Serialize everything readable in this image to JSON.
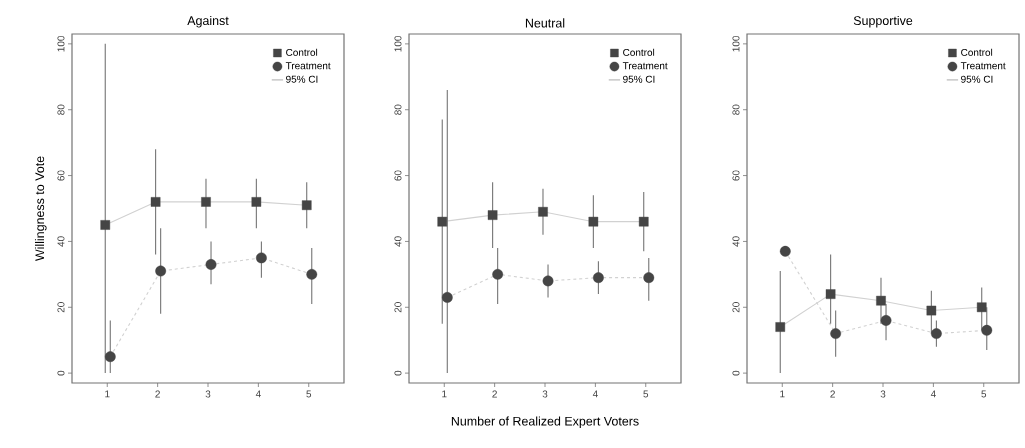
{
  "chart_data": [
    {
      "type": "line",
      "title": "Against",
      "ylabel": "Willingness to Vote",
      "xlim": [
        0.3,
        5.7
      ],
      "ylim": [
        -3,
        103
      ],
      "xticks": [
        1,
        2,
        3,
        4,
        5
      ],
      "yticks": [
        0,
        20,
        40,
        60,
        80,
        100
      ],
      "grid": false,
      "legend": "top right",
      "annotations": [
        "95% CI"
      ],
      "series": [
        {
          "name": "Control",
          "color": "#454545",
          "marker": "square",
          "line_style": "solid",
          "x": [
            0.96,
            1.96,
            2.96,
            3.96,
            4.96
          ],
          "values": [
            45,
            52,
            52,
            52,
            51
          ],
          "errors": [
            [
              0,
              100
            ],
            [
              36,
              68
            ],
            [
              44,
              59
            ],
            [
              44,
              59
            ],
            [
              44,
              58
            ]
          ]
        },
        {
          "name": "Treatment",
          "color": "#454545",
          "marker": "circle",
          "line_style": "dashed",
          "x": [
            1.06,
            2.06,
            3.06,
            4.06,
            5.06
          ],
          "values": [
            5,
            31,
            33,
            35,
            30
          ],
          "errors": [
            [
              0,
              16
            ],
            [
              18,
              44
            ],
            [
              27,
              40
            ],
            [
              29,
              40
            ],
            [
              21,
              38
            ]
          ]
        }
      ]
    },
    {
      "type": "line",
      "title": "Neutral",
      "xlabel": "Number of Realized Expert Voters",
      "xlim": [
        0.3,
        5.7
      ],
      "ylim": [
        -3,
        103
      ],
      "xticks": [
        1,
        2,
        3,
        4,
        5
      ],
      "yticks": [
        0,
        20,
        40,
        60,
        80,
        100
      ],
      "grid": false,
      "legend": "top right",
      "annotations": [
        "95% CI"
      ],
      "series": [
        {
          "name": "Control",
          "color": "#454545",
          "marker": "square",
          "line_style": "solid",
          "x": [
            0.96,
            1.96,
            2.96,
            3.96,
            4.96
          ],
          "values": [
            46,
            48,
            49,
            46,
            46
          ],
          "errors": [
            [
              15,
              77
            ],
            [
              38,
              58
            ],
            [
              42,
              56
            ],
            [
              38,
              54
            ],
            [
              37,
              55
            ]
          ]
        },
        {
          "name": "Treatment",
          "color": "#454545",
          "marker": "circle",
          "line_style": "dashed",
          "x": [
            1.06,
            2.06,
            3.06,
            4.06,
            5.06
          ],
          "values": [
            23,
            30,
            28,
            29,
            29
          ],
          "errors": [
            [
              0,
              86
            ],
            [
              21,
              38
            ],
            [
              23,
              33
            ],
            [
              24,
              34
            ],
            [
              22,
              35
            ]
          ]
        }
      ]
    },
    {
      "type": "line",
      "title": "Supportive",
      "xlim": [
        0.3,
        5.7
      ],
      "ylim": [
        -3,
        103
      ],
      "xticks": [
        1,
        2,
        3,
        4,
        5
      ],
      "yticks": [
        0,
        20,
        40,
        60,
        80,
        100
      ],
      "grid": false,
      "legend": "top right",
      "annotations": [
        "95% CI"
      ],
      "series": [
        {
          "name": "Control",
          "color": "#454545",
          "marker": "square",
          "line_style": "solid",
          "x": [
            0.96,
            1.96,
            2.96,
            3.96,
            4.96
          ],
          "values": [
            14,
            24,
            22,
            19,
            20
          ],
          "errors": [
            [
              0,
              31
            ],
            [
              15,
              36
            ],
            [
              15,
              29
            ],
            [
              12,
              25
            ],
            [
              13,
              26
            ]
          ]
        },
        {
          "name": "Treatment",
          "color": "#454545",
          "marker": "circle",
          "line_style": "dashed",
          "x": [
            1.06,
            2.06,
            3.06,
            4.06,
            5.06
          ],
          "values": [
            37,
            12,
            16,
            12,
            13
          ],
          "errors": [
            null,
            [
              5,
              19
            ],
            [
              10,
              21
            ],
            [
              8,
              16
            ],
            [
              7,
              20
            ]
          ]
        }
      ]
    }
  ]
}
